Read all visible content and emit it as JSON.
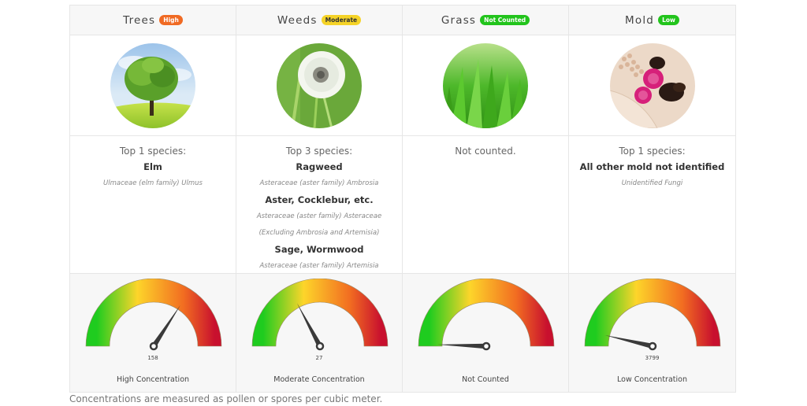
{
  "categories": [
    {
      "name": "Trees",
      "badge": {
        "label": "High",
        "color": "#f06a23",
        "text_color": "#ffffff"
      },
      "image": "tree-photo",
      "species_header": "Top 1 species:",
      "species": [
        {
          "name": "Elm",
          "latin": [
            "Ulmaceae (elm family) Ulmus"
          ]
        }
      ],
      "gauge": {
        "value": "158",
        "needle_angle_deg": 123,
        "label": "High Concentration",
        "show_value": true
      }
    },
    {
      "name": "Weeds",
      "badge": {
        "label": "Moderate",
        "color": "#f5d327",
        "text_color": "#333333"
      },
      "image": "dandelion-photo",
      "species_header": "Top 3 species:",
      "species": [
        {
          "name": "Ragweed",
          "latin": [
            "Asteraceae (aster family) Ambrosia"
          ]
        },
        {
          "name": "Aster, Cocklebur, etc.",
          "latin": [
            "Asteraceae (aster family) Asteraceae",
            "(Excluding Ambrosia and Artemisia)"
          ]
        },
        {
          "name": "Sage, Wormwood",
          "latin": [
            "Asteraceae (aster family) Artemisia"
          ]
        }
      ],
      "gauge": {
        "value": "27",
        "needle_angle_deg": 62,
        "label": "Moderate Concentration",
        "show_value": true
      }
    },
    {
      "name": "Grass",
      "badge": {
        "label": "Not Counted",
        "color": "#22c41c",
        "text_color": "#ffffff"
      },
      "image": "grass-photo",
      "species_header": "Not counted.",
      "species": [],
      "gauge": {
        "value": "",
        "needle_angle_deg": 2,
        "label": "Not Counted",
        "show_value": false
      }
    },
    {
      "name": "Mold",
      "badge": {
        "label": "Low",
        "color": "#22c41c",
        "text_color": "#ffffff"
      },
      "image": "mold-microscope-photo",
      "species_header": "Top 1 species:",
      "species": [
        {
          "name": "All other mold not identified",
          "latin": [
            "Unidentified Fungi"
          ]
        }
      ],
      "gauge": {
        "value": "3799",
        "needle_angle_deg": 13,
        "label": "Low Concentration",
        "show_value": true
      }
    }
  ],
  "footer": {
    "note": "Concentrations are measured as pollen or spores per cubic meter."
  },
  "colors": {
    "gauge_green": "#1fcc1f",
    "gauge_yellow": "#fdd52a",
    "gauge_orange": "#f26d21",
    "gauge_red": "#c8102e",
    "needle": "#3a3a3a"
  }
}
